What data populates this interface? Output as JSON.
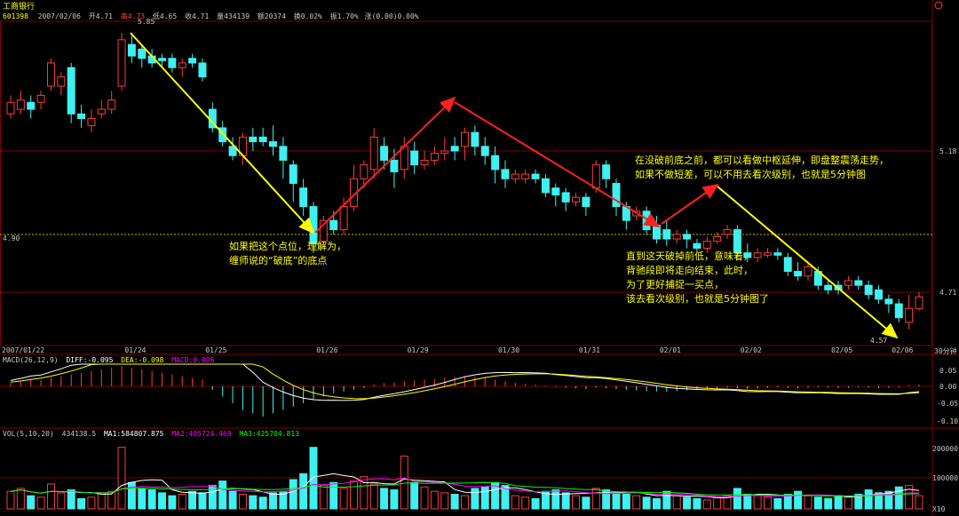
{
  "header": {
    "stock_name": "工商银行",
    "stock_code": "601398",
    "date": "2007/02/06",
    "open": "开4.71",
    "high": "高4.73",
    "low": "低4.65",
    "close": "收4.71",
    "volume": "量434139",
    "amount": "额20374",
    "turnover": "换0.02%",
    "amplitude": "振1.70%",
    "change": "涨(0.00)0.00%"
  },
  "price_panel": {
    "ylim": [
      4.5,
      5.9
    ],
    "level_labels": [
      "5.18",
      "4.90",
      "4.71"
    ],
    "high_marker": "5.85",
    "low_marker": "4.57",
    "period_label": "30分钟"
  },
  "date_labels": [
    "2007/01/22",
    "01/24",
    "01/25",
    "01/26",
    "01/29",
    "01/30",
    "01/31",
    "02/01",
    "02/02",
    "02/05",
    "02/06"
  ],
  "macd_panel": {
    "header_left": "MACD(26,12,9)",
    "diff_label": "DIFF:-0.095",
    "dea_label": "DEA:-0.098",
    "macd_label": "MACD:0.006",
    "axis_labels": [
      "0.05",
      "0.00",
      "-0.05",
      "-0.10"
    ]
  },
  "vol_panel": {
    "header_left": "VOL(5,10,20)",
    "vol_value": "434138.5",
    "ma1_label": "MA1:584807.875",
    "ma2_label": "MA2:405724.469",
    "ma3_label": "MA3:425704.813",
    "axis_labels": [
      "200000",
      "100000"
    ],
    "unit_label": "X10"
  },
  "annotations": [
    {
      "lines": [
        "如果把这个点位，理解为，",
        "缠师说的“破底”的底点"
      ]
    },
    {
      "lines": [
        "在没破前底之前，都可以看做中枢延伸，即盘整震荡走势，",
        "如果不做短差，可以不用去看次级别，也就是5分钟图"
      ]
    },
    {
      "lines": [
        "直到这天破掉前低，意味着，",
        "背驰段即将走向结束，此时，",
        "为了更好捕捉一买点，",
        "该去看次级别，也就是5分钟图了"
      ]
    }
  ],
  "colors": {
    "up": "#ff3b3b",
    "down": "#3ff0f0",
    "arrow_yellow": "#ffff00",
    "arrow_red": "#ff2020",
    "diff_line": "#ffffff",
    "dea_line": "#ffff00",
    "ma1_line": "#ffffff",
    "ma2_line": "#ff00ff",
    "ma3_line": "#00ff00"
  },
  "chart_data": {
    "type": "candlestick",
    "interval": "30分钟",
    "ylim": [
      4.5,
      5.9
    ],
    "candles": [
      [
        5.5,
        5.55,
        5.58,
        5.48
      ],
      [
        5.52,
        5.56,
        5.6,
        5.5
      ],
      [
        5.55,
        5.52,
        5.58,
        5.48
      ],
      [
        5.55,
        5.58,
        5.6,
        5.52
      ],
      [
        5.62,
        5.72,
        5.74,
        5.6
      ],
      [
        5.62,
        5.66,
        5.68,
        5.58
      ],
      [
        5.7,
        5.5,
        5.72,
        5.46
      ],
      [
        5.5,
        5.48,
        5.54,
        5.44
      ],
      [
        5.45,
        5.48,
        5.52,
        5.42
      ],
      [
        5.5,
        5.52,
        5.56,
        5.48
      ],
      [
        5.52,
        5.56,
        5.6,
        5.5
      ],
      [
        5.62,
        5.82,
        5.85,
        5.6
      ],
      [
        5.8,
        5.75,
        5.85,
        5.72
      ],
      [
        5.78,
        5.74,
        5.8,
        5.7
      ],
      [
        5.75,
        5.72,
        5.78,
        5.7
      ],
      [
        5.74,
        5.73,
        5.76,
        5.7
      ],
      [
        5.74,
        5.7,
        5.76,
        5.68
      ],
      [
        5.7,
        5.72,
        5.74,
        5.66
      ],
      [
        5.74,
        5.72,
        5.76,
        5.7
      ],
      [
        5.72,
        5.66,
        5.74,
        5.64
      ],
      [
        5.52,
        5.44,
        5.55,
        5.42
      ],
      [
        5.44,
        5.38,
        5.47,
        5.36
      ],
      [
        5.36,
        5.32,
        5.4,
        5.3
      ],
      [
        5.32,
        5.4,
        5.42,
        5.28
      ],
      [
        5.4,
        5.38,
        5.44,
        5.34
      ],
      [
        5.4,
        5.38,
        5.44,
        5.36
      ],
      [
        5.38,
        5.36,
        5.45,
        5.32
      ],
      [
        5.36,
        5.3,
        5.4,
        5.22
      ],
      [
        5.28,
        5.2,
        5.3,
        5.12
      ],
      [
        5.18,
        5.1,
        5.22,
        5.06
      ],
      [
        5.1,
        4.94,
        5.12,
        4.9
      ],
      [
        4.95,
        5.04,
        5.06,
        4.93
      ],
      [
        5.04,
        5.0,
        5.08,
        4.98
      ],
      [
        5.0,
        5.1,
        5.14,
        4.98
      ],
      [
        5.1,
        5.22,
        5.28,
        5.08
      ],
      [
        5.22,
        5.28,
        5.3,
        5.18
      ],
      [
        5.26,
        5.4,
        5.44,
        5.22
      ],
      [
        5.36,
        5.3,
        5.4,
        5.26
      ],
      [
        5.3,
        5.25,
        5.35,
        5.18
      ],
      [
        5.26,
        5.36,
        5.4,
        5.22
      ],
      [
        5.34,
        5.28,
        5.38,
        5.24
      ],
      [
        5.28,
        5.3,
        5.34,
        5.26
      ],
      [
        5.3,
        5.33,
        5.36,
        5.28
      ],
      [
        5.33,
        5.34,
        5.4,
        5.3
      ],
      [
        5.36,
        5.34,
        5.4,
        5.3
      ],
      [
        5.36,
        5.42,
        5.44,
        5.3
      ],
      [
        5.42,
        5.36,
        5.45,
        5.32
      ],
      [
        5.36,
        5.32,
        5.4,
        5.28
      ],
      [
        5.32,
        5.26,
        5.36,
        5.2
      ],
      [
        5.26,
        5.22,
        5.3,
        5.18
      ],
      [
        5.22,
        5.24,
        5.26,
        5.2
      ],
      [
        5.22,
        5.24,
        5.26,
        5.2
      ],
      [
        5.24,
        5.22,
        5.26,
        5.2
      ],
      [
        5.22,
        5.16,
        5.24,
        5.14
      ],
      [
        5.18,
        5.15,
        5.2,
        5.1
      ],
      [
        5.16,
        5.12,
        5.18,
        5.08
      ],
      [
        5.12,
        5.14,
        5.16,
        5.1
      ],
      [
        5.14,
        5.1,
        5.16,
        5.06
      ],
      [
        5.18,
        5.28,
        5.3,
        5.16
      ],
      [
        5.28,
        5.22,
        5.3,
        5.18
      ],
      [
        5.2,
        5.1,
        5.22,
        5.06
      ],
      [
        5.1,
        5.04,
        5.12,
        5.0
      ],
      [
        5.06,
        5.08,
        5.1,
        5.04
      ],
      [
        5.08,
        5.0,
        5.1,
        4.98
      ],
      [
        5.02,
        4.96,
        5.06,
        4.94
      ],
      [
        5.0,
        4.96,
        5.04,
        4.93
      ],
      [
        4.96,
        4.98,
        5.0,
        4.94
      ],
      [
        4.98,
        4.96,
        5.0,
        4.92
      ],
      [
        4.94,
        4.92,
        4.96,
        4.9
      ],
      [
        4.92,
        4.95,
        4.97,
        4.9
      ],
      [
        4.95,
        4.97,
        4.99,
        4.94
      ],
      [
        4.98,
        5.0,
        5.02,
        4.96
      ],
      [
        5.0,
        4.9,
        5.02,
        4.88
      ],
      [
        4.9,
        4.88,
        4.94,
        4.86
      ],
      [
        4.88,
        4.9,
        4.92,
        4.86
      ],
      [
        4.89,
        4.9,
        4.92,
        4.88
      ],
      [
        4.9,
        4.89,
        4.92,
        4.87
      ],
      [
        4.88,
        4.82,
        4.9,
        4.8
      ],
      [
        4.82,
        4.8,
        4.86,
        4.78
      ],
      [
        4.8,
        4.84,
        4.86,
        4.78
      ],
      [
        4.82,
        4.76,
        4.84,
        4.74
      ],
      [
        4.76,
        4.74,
        4.78,
        4.72
      ],
      [
        4.76,
        4.74,
        4.78,
        4.72
      ],
      [
        4.76,
        4.78,
        4.8,
        4.74
      ],
      [
        4.78,
        4.76,
        4.8,
        4.74
      ],
      [
        4.76,
        4.72,
        4.78,
        4.7
      ],
      [
        4.74,
        4.7,
        4.76,
        4.68
      ],
      [
        4.7,
        4.68,
        4.72,
        4.64
      ],
      [
        4.68,
        4.62,
        4.7,
        4.6
      ],
      [
        4.6,
        4.66,
        4.72,
        4.57
      ],
      [
        4.66,
        4.71,
        4.73,
        4.65
      ]
    ],
    "macd_hist": [
      0.01,
      0.015,
      0.02,
      0.018,
      0.025,
      0.03,
      0.035,
      0.04,
      0.045,
      0.05,
      0.055,
      0.06,
      0.055,
      0.05,
      0.045,
      0.04,
      0.035,
      0.03,
      0.025,
      0.02,
      -0.01,
      -0.03,
      -0.05,
      -0.07,
      -0.08,
      -0.09,
      -0.08,
      -0.07,
      -0.06,
      -0.05,
      -0.04,
      -0.03,
      -0.02,
      -0.015,
      -0.01,
      -0.005,
      0.005,
      0.01,
      0.012,
      0.015,
      0.018,
      0.02,
      0.022,
      0.025,
      0.028,
      0.03,
      0.028,
      0.025,
      0.02,
      0.015,
      0.01,
      0.008,
      0.005,
      0.003,
      -0.002,
      -0.004,
      -0.006,
      -0.008,
      -0.004,
      -0.006,
      -0.008,
      -0.01,
      -0.012,
      -0.014,
      -0.015,
      -0.016,
      -0.014,
      -0.012,
      -0.01,
      -0.008,
      -0.006,
      -0.004,
      -0.006,
      -0.008,
      -0.006,
      -0.004,
      -0.003,
      -0.005,
      -0.006,
      -0.004,
      -0.003,
      -0.004,
      -0.005,
      -0.004,
      -0.003,
      -0.004,
      -0.005,
      -0.004,
      -0.003,
      0.004,
      0.006
    ],
    "vol": [
      60000,
      70000,
      45000,
      40000,
      85000,
      55000,
      65000,
      35000,
      40000,
      55000,
      60000,
      210000,
      90000,
      70000,
      65000,
      55000,
      45000,
      50000,
      60000,
      55000,
      80000,
      95000,
      60000,
      50000,
      45000,
      40000,
      55000,
      60000,
      100000,
      120000,
      210000,
      80000,
      90000,
      70000,
      95000,
      110000,
      85000,
      70000,
      65000,
      180000,
      90000,
      75000,
      60000,
      55000,
      50000,
      45000,
      70000,
      75000,
      90000,
      80000,
      45000,
      40000,
      35000,
      60000,
      65000,
      55000,
      45000,
      40000,
      70000,
      65000,
      55000,
      50000,
      45000,
      40000,
      35000,
      60000,
      45000,
      40000,
      35000,
      30000,
      40000,
      45000,
      70000,
      50000,
      45000,
      40000,
      35000,
      50000,
      60000,
      45000,
      40000,
      35000,
      45000,
      40000,
      50000,
      65000,
      55000,
      60000,
      75000,
      80000,
      45000
    ]
  }
}
